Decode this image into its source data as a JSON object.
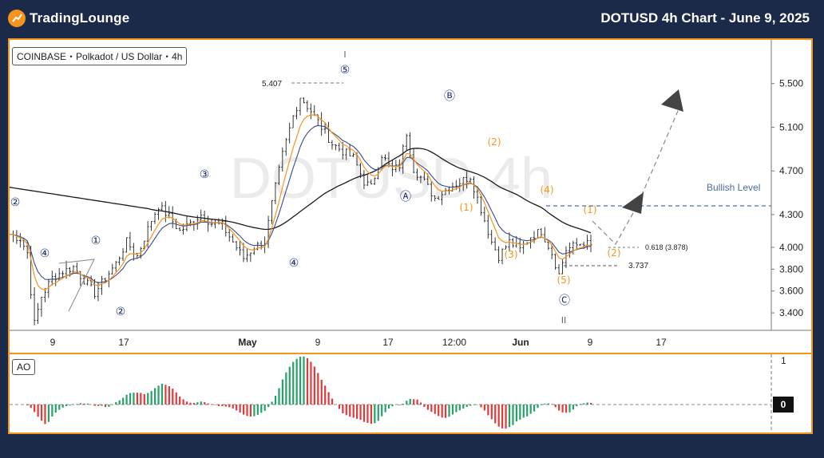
{
  "header": {
    "logo_text": "TradingLounge",
    "logo_icon": "tradinglounge-logo-icon",
    "title": "DOTUSD 4h Chart - June 9, 2025"
  },
  "colors": {
    "background": "#1c2a4a",
    "accent": "#f7941d",
    "price_bar": "#222222",
    "ema_fast": "#f7941d",
    "ema_slow": "#3b4a8a",
    "sma_long": "#1a1a1a",
    "ao_up": "#26a269",
    "ao_down": "#e03a3a",
    "bullish_level": "#4a6fa5"
  },
  "chart_data": [
    {
      "type": "line",
      "symbol_label": "COINBASE・Polkadot / US Dollar・4h",
      "watermark": "DOTUSD 4h",
      "y_ticks": [
        5.5,
        5.1,
        4.7,
        4.3,
        4.0,
        3.8,
        3.6,
        3.4
      ],
      "y_tick_labels": [
        "5.500",
        "5.100",
        "4.700",
        "4.300",
        "4.000",
        "3.800",
        "3.600",
        "3.400"
      ],
      "ylim": [
        3.24,
        5.9
      ],
      "x_tick_labels": [
        "9",
        "17",
        "May",
        "9",
        "17",
        "12:00",
        "Jun",
        "9",
        "17"
      ],
      "x_tick_bold": [
        false,
        false,
        true,
        false,
        false,
        false,
        true,
        false,
        false
      ],
      "price_keypoints": [
        [
          0,
          4.12
        ],
        [
          3,
          4.08
        ],
        [
          5,
          3.95
        ],
        [
          6,
          3.6
        ],
        [
          7,
          3.3
        ],
        [
          9,
          3.55
        ],
        [
          12,
          3.72
        ],
        [
          15,
          3.78
        ],
        [
          18,
          3.82
        ],
        [
          21,
          3.7
        ],
        [
          24,
          3.58
        ],
        [
          27,
          3.72
        ],
        [
          30,
          3.85
        ],
        [
          33,
          4.05
        ],
        [
          36,
          3.92
        ],
        [
          40,
          4.25
        ],
        [
          42,
          4.38
        ],
        [
          45,
          4.28
        ],
        [
          48,
          4.15
        ],
        [
          51,
          4.22
        ],
        [
          54,
          4.3
        ],
        [
          57,
          4.22
        ],
        [
          60,
          4.2
        ],
        [
          63,
          4.05
        ],
        [
          66,
          3.9
        ],
        [
          69,
          4.0
        ],
        [
          72,
          4.05
        ],
        [
          74,
          4.4
        ],
        [
          77,
          4.85
        ],
        [
          80,
          5.2
        ],
        [
          82,
          5.38
        ],
        [
          85,
          5.25
        ],
        [
          88,
          5.1
        ],
        [
          91,
          4.95
        ],
        [
          94,
          4.88
        ],
        [
          97,
          4.82
        ],
        [
          100,
          4.6
        ],
        [
          102,
          4.55
        ],
        [
          105,
          4.85
        ],
        [
          108,
          4.7
        ],
        [
          110,
          4.75
        ],
        [
          112,
          5.05
        ],
        [
          114,
          4.72
        ],
        [
          117,
          4.6
        ],
        [
          120,
          4.45
        ],
        [
          124,
          4.55
        ],
        [
          127,
          4.6
        ],
        [
          130,
          4.65
        ],
        [
          133,
          4.35
        ],
        [
          136,
          4.05
        ],
        [
          138,
          3.92
        ],
        [
          141,
          4.05
        ],
        [
          144,
          3.98
        ],
        [
          147,
          4.1
        ],
        [
          150,
          4.15
        ],
        [
          153,
          3.95
        ],
        [
          155,
          3.75
        ],
        [
          157,
          3.98
        ],
        [
          160,
          4.02
        ],
        [
          162,
          4.05
        ],
        [
          164,
          4.01
        ]
      ],
      "annotations": {
        "circled_numbers": [
          "②",
          "④",
          "①",
          "②",
          "③",
          "④",
          "⑤",
          "Ⓐ",
          "Ⓑ",
          "Ⓒ"
        ],
        "paren_labels_orange": [
          "(1)",
          "(2)",
          "(3)",
          "(4)",
          "(5)",
          "(1)",
          "(2)"
        ],
        "roman_top": "I",
        "roman_bottom": "II",
        "level_high": "5.407",
        "level_low": "3.737",
        "fib_label": "0.618 (3.878)",
        "bullish_level_label": "Bullish Level"
      }
    },
    {
      "type": "bar",
      "title": "AO",
      "y_tick_labels": [
        "1",
        "0"
      ],
      "zero_label": "0"
    }
  ]
}
